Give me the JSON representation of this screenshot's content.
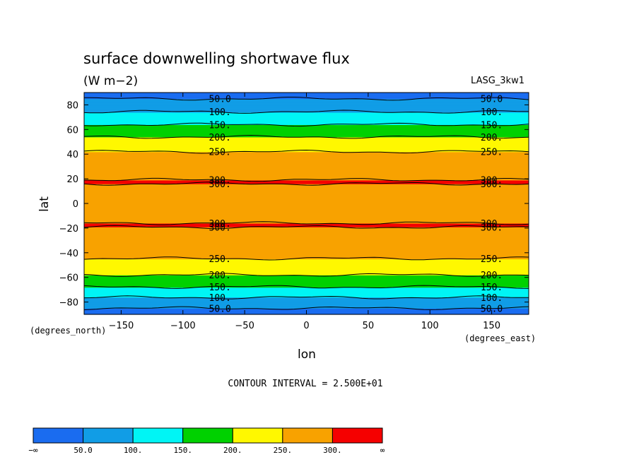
{
  "chart_data": {
    "type": "heatmap",
    "title": "surface downwelling shortwave flux",
    "subtitle": "(W m−2)",
    "model_label": "LASG_3kw1",
    "xlabel": "lon",
    "ylabel": "lat",
    "x_units": "(degrees_east)",
    "y_units": "(degrees_north)",
    "xlim": [
      -180,
      180
    ],
    "ylim": [
      -90,
      90
    ],
    "x_ticks": [
      -150,
      -100,
      -50,
      0,
      50,
      100,
      150
    ],
    "x_tick_labels": [
      "−150",
      "−100",
      "−50",
      "0",
      "50",
      "100",
      "150"
    ],
    "y_ticks": [
      80,
      60,
      40,
      20,
      0,
      -20,
      -40,
      -60,
      -80
    ],
    "y_tick_labels": [
      "80",
      "60",
      "40",
      "20",
      "0",
      "−20",
      "−40",
      "−60",
      "−80"
    ],
    "contour_interval_text": "CONTOUR INTERVAL = 2.500E+01",
    "levels": [
      50,
      100,
      150,
      200,
      250,
      300
    ],
    "colorbar": {
      "colors": [
        "#1a6cf0",
        "#119de6",
        "#00f5f5",
        "#00d100",
        "#fff800",
        "#f8a200",
        "#f50000"
      ],
      "labels": [
        "−∞",
        "50.0",
        "100.",
        "150.",
        "200.",
        "250.",
        "300.",
        "∞"
      ]
    },
    "zonal_profile": {
      "lat": [
        -90,
        -84,
        -78,
        -72,
        -66,
        -60,
        -54,
        -48,
        -42,
        -36,
        -30,
        -24,
        -18,
        -12,
        -6,
        0,
        6,
        12,
        18,
        24,
        30,
        36,
        42,
        48,
        54,
        60,
        66,
        72,
        78,
        84,
        90
      ],
      "flux": [
        25,
        55,
        90,
        125,
        160,
        190,
        220,
        240,
        258,
        272,
        285,
        292,
        302,
        296,
        288,
        285,
        288,
        296,
        302,
        292,
        282,
        268,
        250,
        228,
        200,
        170,
        140,
        112,
        82,
        55,
        25
      ]
    },
    "contour_labels": [
      "50.0",
      "100.",
      "150.",
      "200.",
      "250.",
      "300."
    ]
  }
}
